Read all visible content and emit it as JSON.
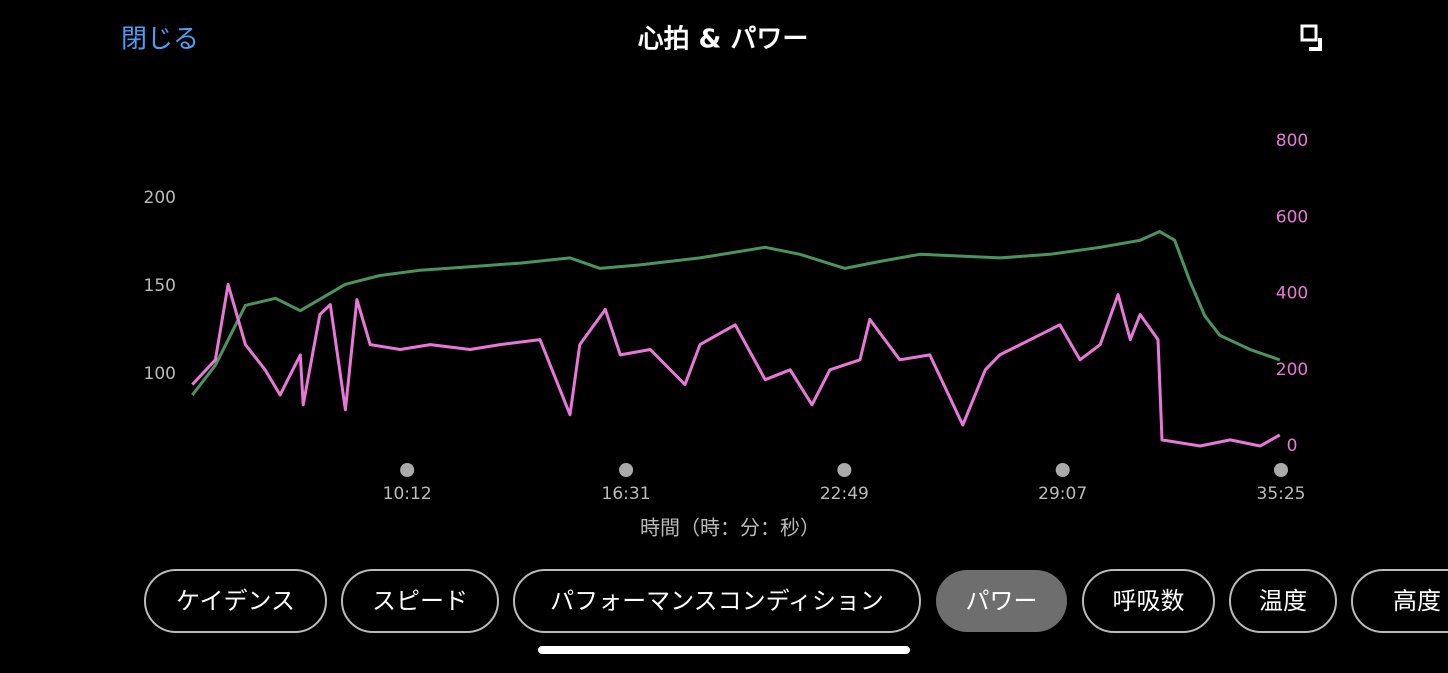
{
  "header": {
    "close": "閉じる",
    "title": "心拍 & パワー"
  },
  "chart_data": {
    "type": "line",
    "x_label": "時間（時：分：秒）",
    "xlim": [
      236,
      2125
    ],
    "xticks": [
      {
        "value": 612,
        "label": "10:12"
      },
      {
        "value": 991,
        "label": "16:31"
      },
      {
        "value": 1369,
        "label": "22:49"
      },
      {
        "value": 1747,
        "label": "29:07"
      },
      {
        "value": 2125,
        "label": "35:25"
      }
    ],
    "ylim": [
      59.1,
      232.4
    ],
    "yticks": [
      100,
      150,
      200
    ],
    "y2lim": [
      0,
      800
    ],
    "y2ticks": [
      0,
      200,
      400,
      600,
      800
    ],
    "series": [
      {
        "name": "心拍",
        "color": "#4a9460",
        "x": [
          240,
          280,
          332,
          384,
          427,
          505,
          565,
          635,
          721,
          808,
          894,
          946,
          1015,
          1119,
          1232,
          1292,
          1370,
          1431,
          1500,
          1639,
          1725,
          1812,
          1881,
          1915,
          1941,
          1967,
          1993,
          2019,
          2071,
          2123
        ],
        "values": [
          88,
          105,
          139,
          143,
          136,
          151,
          156,
          159,
          161,
          163,
          166,
          160,
          162,
          166,
          172,
          168,
          160,
          164,
          168,
          166,
          168,
          172,
          176,
          181,
          176,
          153,
          133,
          122,
          114,
          108
        ]
      },
      {
        "name": "パワー",
        "color": "#e878d8",
        "axis": "y2",
        "x": [
          240,
          280,
          302,
          332,
          366,
          392,
          427,
          432,
          461,
          479,
          505,
          525,
          548,
          600,
          652,
          721,
          773,
          842,
          894,
          911,
          955,
          981,
          1033,
          1093,
          1119,
          1180,
          1232,
          1275,
          1313,
          1344,
          1396,
          1413,
          1465,
          1517,
          1574,
          1613,
          1638,
          1708,
          1742,
          1777,
          1812,
          1843,
          1864,
          1881,
          1912,
          1919,
          1985,
          2037,
          2089,
          2123
        ],
        "values": [
          161,
          226,
          424,
          266,
          200,
          134,
          239,
          108,
          345,
          371,
          95,
          384,
          266,
          253,
          266,
          253,
          266,
          279,
          82,
          266,
          358,
          239,
          253,
          161,
          266,
          318,
          174,
          200,
          108,
          200,
          226,
          332,
          226,
          239,
          55,
          200,
          239,
          292,
          318,
          226,
          266,
          397,
          279,
          345,
          279,
          16,
          0,
          16,
          0,
          29
        ]
      }
    ]
  },
  "tabs": [
    "ケイデンス",
    "スピード",
    "パフォーマンスコンディション",
    "パワー",
    "呼吸数",
    "温度",
    "高度"
  ]
}
